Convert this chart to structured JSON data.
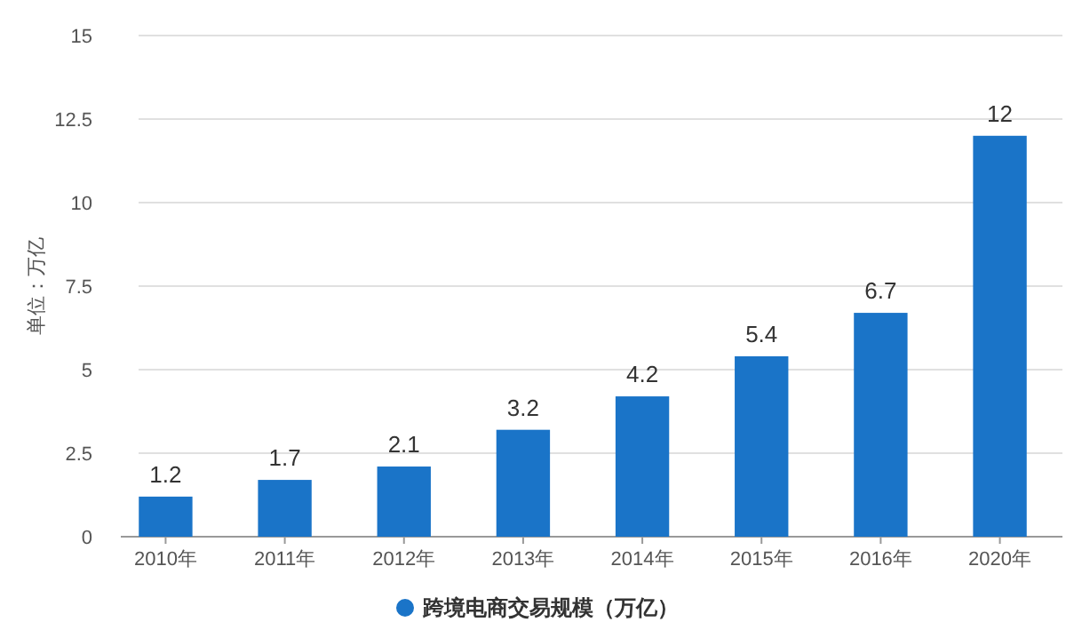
{
  "chart_data": {
    "type": "bar",
    "ylabel": "单位：万亿",
    "categories": [
      "2010年",
      "2011年",
      "2012年",
      "2013年",
      "2014年",
      "2015年",
      "2016年",
      "2020年"
    ],
    "series": [
      {
        "name": "跨境电商交易规模（万亿）",
        "color": "#1a74c8",
        "values": [
          1.2,
          1.7,
          2.1,
          3.2,
          4.2,
          5.4,
          6.7,
          12
        ]
      }
    ],
    "ylim": [
      0,
      15
    ],
    "yticks": [
      0,
      2.5,
      5,
      7.5,
      10,
      12.5,
      15
    ],
    "grid": "y",
    "data_labels": true,
    "legend": "bottom"
  }
}
